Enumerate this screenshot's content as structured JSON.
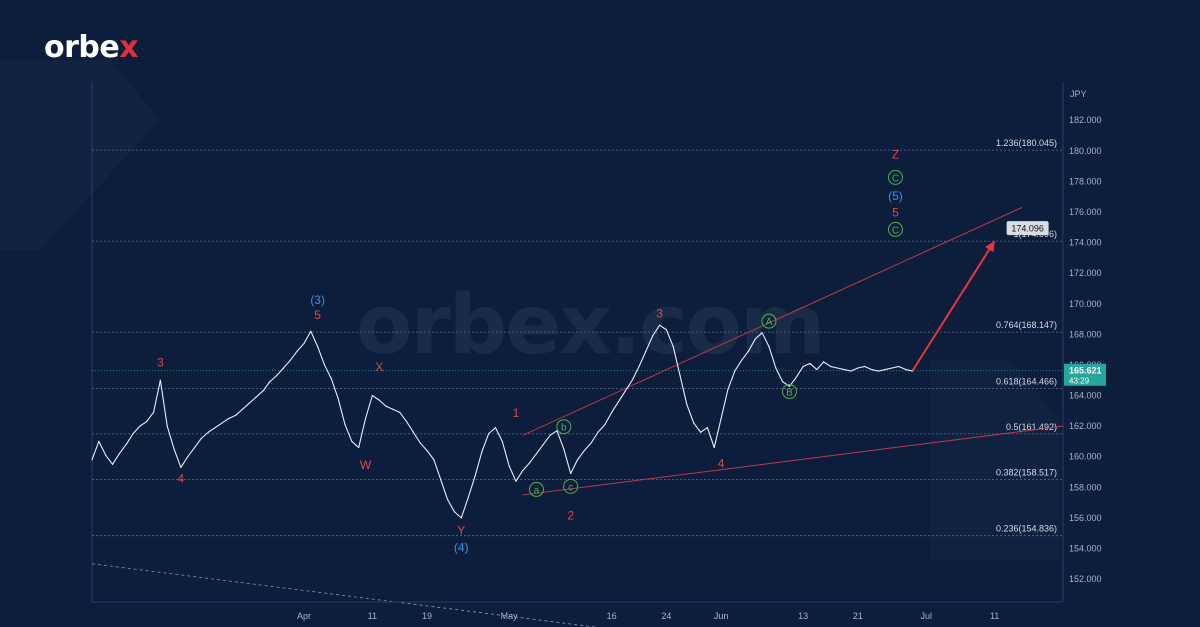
{
  "brand": {
    "logo_main": "orbe",
    "logo_x": "x",
    "watermark": "orbex.com"
  },
  "colors": {
    "background": "#0c1e3c",
    "price_line": "#e8eef7",
    "grid": "#5f6f8c",
    "wave_red": "#e0474e",
    "wave_blue": "#3d8fe8",
    "wave_green": "#4caf50",
    "channel": "#c0394a",
    "arrow": "#e8363f",
    "current_price_bg": "#26a69a",
    "axis_text": "#a9b3c4"
  },
  "chart_data": {
    "type": "line",
    "currency_label": "JPY",
    "x_ticks": [
      "Apr",
      "11",
      "19",
      "May",
      "16",
      "24",
      "Jun",
      "13",
      "21",
      "Jul",
      "11"
    ],
    "x_tick_days": [
      31,
      41,
      49,
      61,
      76,
      84,
      92,
      104,
      112,
      122,
      132
    ],
    "xlim": [
      0,
      142
    ],
    "ylim": [
      150.5,
      184.5
    ],
    "y_ticks": [
      "152.000",
      "154.000",
      "156.000",
      "158.000",
      "160.000",
      "162.000",
      "164.000",
      "166.000",
      "168.000",
      "170.000",
      "172.000",
      "174.000",
      "176.000",
      "178.000",
      "180.000",
      "182.000"
    ],
    "y_tick_values": [
      152,
      154,
      156,
      158,
      160,
      162,
      164,
      166,
      168,
      170,
      172,
      174,
      176,
      178,
      180,
      182
    ],
    "fib_levels": [
      {
        "label": "1.236(180.045)",
        "value": 180.045
      },
      {
        "label": "1(174.096)",
        "value": 174.096
      },
      {
        "label": "0.764(168.147)",
        "value": 168.147
      },
      {
        "label": "0.618(164.466)",
        "value": 164.466
      },
      {
        "label": "0.5(161.492)",
        "value": 161.492
      },
      {
        "label": "0.382(158.517)",
        "value": 158.517
      },
      {
        "label": "0.236(154.836)",
        "value": 154.836
      }
    ],
    "current_price": {
      "value": 165.621,
      "label": "165.621",
      "timer": "43:29"
    },
    "target": {
      "value": 174.096,
      "label": "174.096"
    },
    "series": [
      {
        "x": [
          0,
          1,
          2,
          3,
          4,
          5,
          6,
          7,
          8,
          9,
          10,
          11,
          12,
          13,
          14,
          15,
          16,
          17,
          18,
          19,
          20,
          21,
          22,
          23,
          24,
          25,
          26,
          27,
          28,
          29,
          30,
          31,
          32,
          33,
          34,
          35,
          36,
          37,
          38,
          39,
          40,
          41,
          42,
          43,
          44,
          45,
          46,
          47,
          48,
          49,
          50,
          51,
          52,
          53,
          54,
          55,
          56,
          57,
          58,
          59,
          60,
          61,
          62,
          63,
          64,
          65,
          66,
          67,
          68,
          69,
          70,
          71,
          72,
          73,
          74,
          75,
          76,
          77,
          78,
          79,
          80,
          81,
          82,
          83,
          84,
          85,
          86,
          87,
          88,
          89,
          90,
          91,
          92,
          93,
          94,
          95,
          96,
          97,
          98,
          99,
          100,
          101,
          102,
          103,
          104,
          105,
          106,
          107,
          108,
          109,
          110,
          111,
          112,
          113,
          114,
          115,
          116,
          117,
          118,
          119,
          120
        ],
        "y": [
          159.8,
          161.0,
          160.1,
          159.5,
          160.2,
          160.8,
          161.5,
          162.0,
          162.3,
          162.9,
          165.0,
          162.0,
          160.5,
          159.3,
          160.0,
          160.6,
          161.2,
          161.6,
          161.9,
          162.2,
          162.5,
          162.7,
          163.1,
          163.5,
          163.9,
          164.3,
          164.9,
          165.3,
          165.8,
          166.3,
          166.9,
          167.4,
          168.2,
          167.2,
          166.0,
          165.1,
          163.8,
          162.1,
          161.0,
          160.6,
          162.5,
          164.0,
          163.7,
          163.3,
          163.1,
          162.9,
          162.3,
          161.6,
          160.9,
          160.4,
          159.8,
          158.5,
          157.2,
          156.4,
          156.0,
          157.3,
          158.7,
          160.3,
          161.5,
          161.9,
          161.0,
          159.4,
          158.4,
          159.1,
          159.6,
          160.2,
          160.8,
          161.4,
          161.7,
          160.5,
          158.9,
          159.8,
          160.4,
          160.9,
          161.6,
          162.1,
          162.9,
          163.6,
          164.3,
          165.0,
          165.9,
          166.9,
          167.9,
          168.6,
          168.3,
          167.2,
          165.3,
          163.4,
          162.2,
          161.6,
          161.9,
          160.6,
          162.5,
          164.4,
          165.6,
          166.3,
          166.9,
          167.7,
          168.1,
          167.2,
          165.8,
          164.9,
          164.6,
          165.2,
          165.9,
          166.1,
          165.7,
          166.2,
          165.9,
          165.8,
          165.7,
          165.6,
          165.8,
          165.9,
          165.7,
          165.6,
          165.7,
          165.8,
          165.9,
          165.7,
          165.6
        ]
      }
    ],
    "forecast": {
      "x": [
        120,
        132
      ],
      "y": [
        165.621,
        174.096
      ]
    },
    "channel_lines": [
      {
        "x": [
          63,
          136
        ],
        "y": [
          161.4,
          176.3
        ]
      },
      {
        "x": [
          63,
          142
        ],
        "y": [
          157.5,
          162.0
        ]
      },
      {
        "x": [
          0,
          80
        ],
        "y": [
          153.0,
          148.5
        ]
      }
    ],
    "wave_labels": [
      {
        "text": "3",
        "x": 10,
        "y": 165.9,
        "color": "red",
        "circled": false
      },
      {
        "text": "4",
        "x": 13,
        "y": 158.3,
        "color": "red",
        "circled": false
      },
      {
        "text": "(3)",
        "x": 33,
        "y": 170.0,
        "color": "blue",
        "circled": false
      },
      {
        "text": "5",
        "x": 33,
        "y": 169.0,
        "color": "red",
        "circled": false
      },
      {
        "text": "X",
        "x": 42,
        "y": 165.6,
        "color": "red",
        "circled": false
      },
      {
        "text": "W",
        "x": 40,
        "y": 159.2,
        "color": "red",
        "circled": false
      },
      {
        "text": "1",
        "x": 62,
        "y": 162.6,
        "color": "red",
        "circled": false
      },
      {
        "text": "b",
        "x": 69,
        "y": 161.7,
        "color": "green",
        "circled": true
      },
      {
        "text": "a",
        "x": 65,
        "y": 157.6,
        "color": "green",
        "circled": true
      },
      {
        "text": "c",
        "x": 70,
        "y": 157.8,
        "color": "green",
        "circled": true
      },
      {
        "text": "2",
        "x": 70,
        "y": 155.9,
        "color": "red",
        "circled": false
      },
      {
        "text": "Y",
        "x": 54,
        "y": 154.9,
        "color": "red",
        "circled": false
      },
      {
        "text": "(4)",
        "x": 54,
        "y": 153.8,
        "color": "blue",
        "circled": false
      },
      {
        "text": "3",
        "x": 83,
        "y": 169.1,
        "color": "red",
        "circled": false
      },
      {
        "text": "4",
        "x": 92,
        "y": 159.3,
        "color": "red",
        "circled": false
      },
      {
        "text": "A",
        "x": 99,
        "y": 168.6,
        "color": "green",
        "circled": true
      },
      {
        "text": "B",
        "x": 102,
        "y": 164.0,
        "color": "green",
        "circled": true
      },
      {
        "text": "Z",
        "x": 117.5,
        "y": 179.5,
        "color": "red",
        "circled": false
      },
      {
        "text": "C",
        "x": 117.5,
        "y": 178.0,
        "color": "green",
        "circled": true
      },
      {
        "text": "(5)",
        "x": 117.5,
        "y": 176.8,
        "color": "blue",
        "circled": false
      },
      {
        "text": "5",
        "x": 117.5,
        "y": 175.7,
        "color": "red",
        "circled": false
      },
      {
        "text": "C",
        "x": 117.5,
        "y": 174.6,
        "color": "green",
        "circled": true
      }
    ]
  }
}
